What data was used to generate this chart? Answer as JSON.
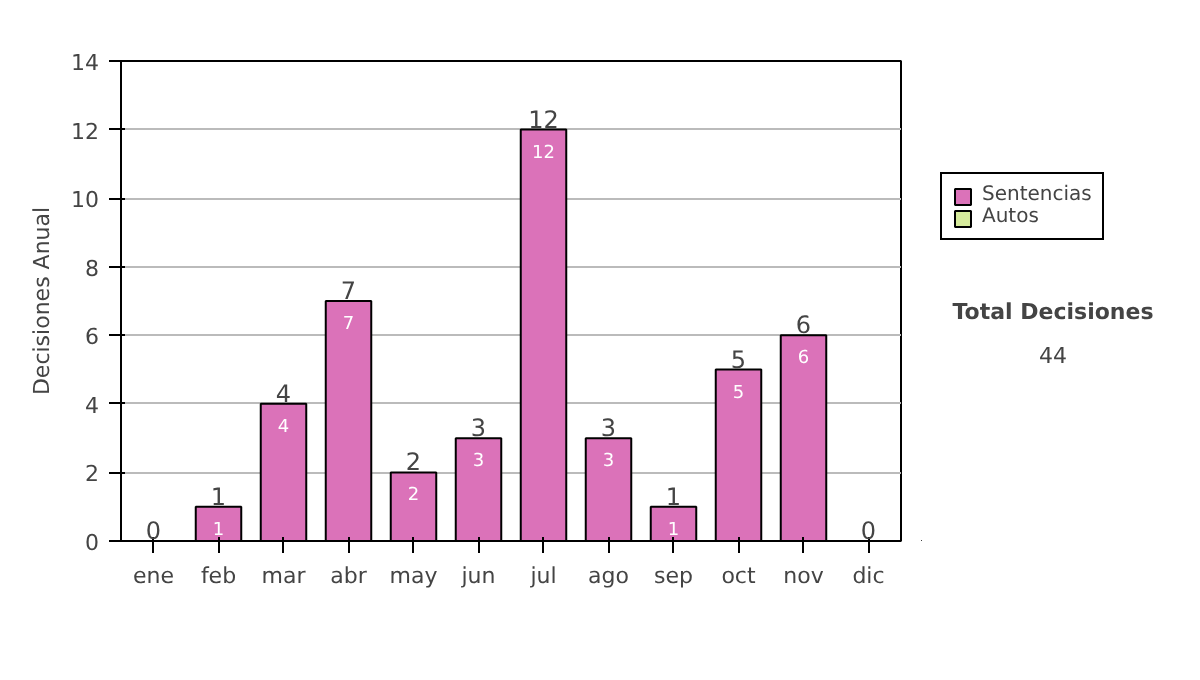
{
  "chart_data": {
    "type": "bar",
    "ylabel": "Decisiones Anual",
    "categories": [
      "ene",
      "feb",
      "mar",
      "abr",
      "may",
      "jun",
      "jul",
      "ago",
      "sep",
      "oct",
      "nov",
      "dic"
    ],
    "series": [
      {
        "name": "Sentencias",
        "color": "#db72b9",
        "values": [
          0,
          1,
          4,
          7,
          2,
          3,
          12,
          3,
          1,
          5,
          6,
          0
        ],
        "value_labels": [
          null,
          "1",
          "4",
          "7",
          "2",
          "3",
          "12",
          "3",
          "1",
          "5",
          "6",
          null
        ]
      },
      {
        "name": "Autos",
        "color": "#d6eb9c",
        "values": [
          0,
          0,
          0,
          0,
          0,
          0,
          0,
          0,
          0,
          0,
          0,
          0
        ]
      }
    ],
    "stacked": true,
    "totals": [
      "0",
      "1",
      "4",
      "7",
      "2",
      "3",
      "12",
      "3",
      "1",
      "5",
      "6",
      "0"
    ],
    "ylim": [
      0,
      14
    ],
    "yticks": [
      0,
      2,
      4,
      6,
      8,
      10,
      12,
      14
    ],
    "grid": "y",
    "legend": "right",
    "annotations": [
      "Total Decisiones",
      "44"
    ]
  }
}
